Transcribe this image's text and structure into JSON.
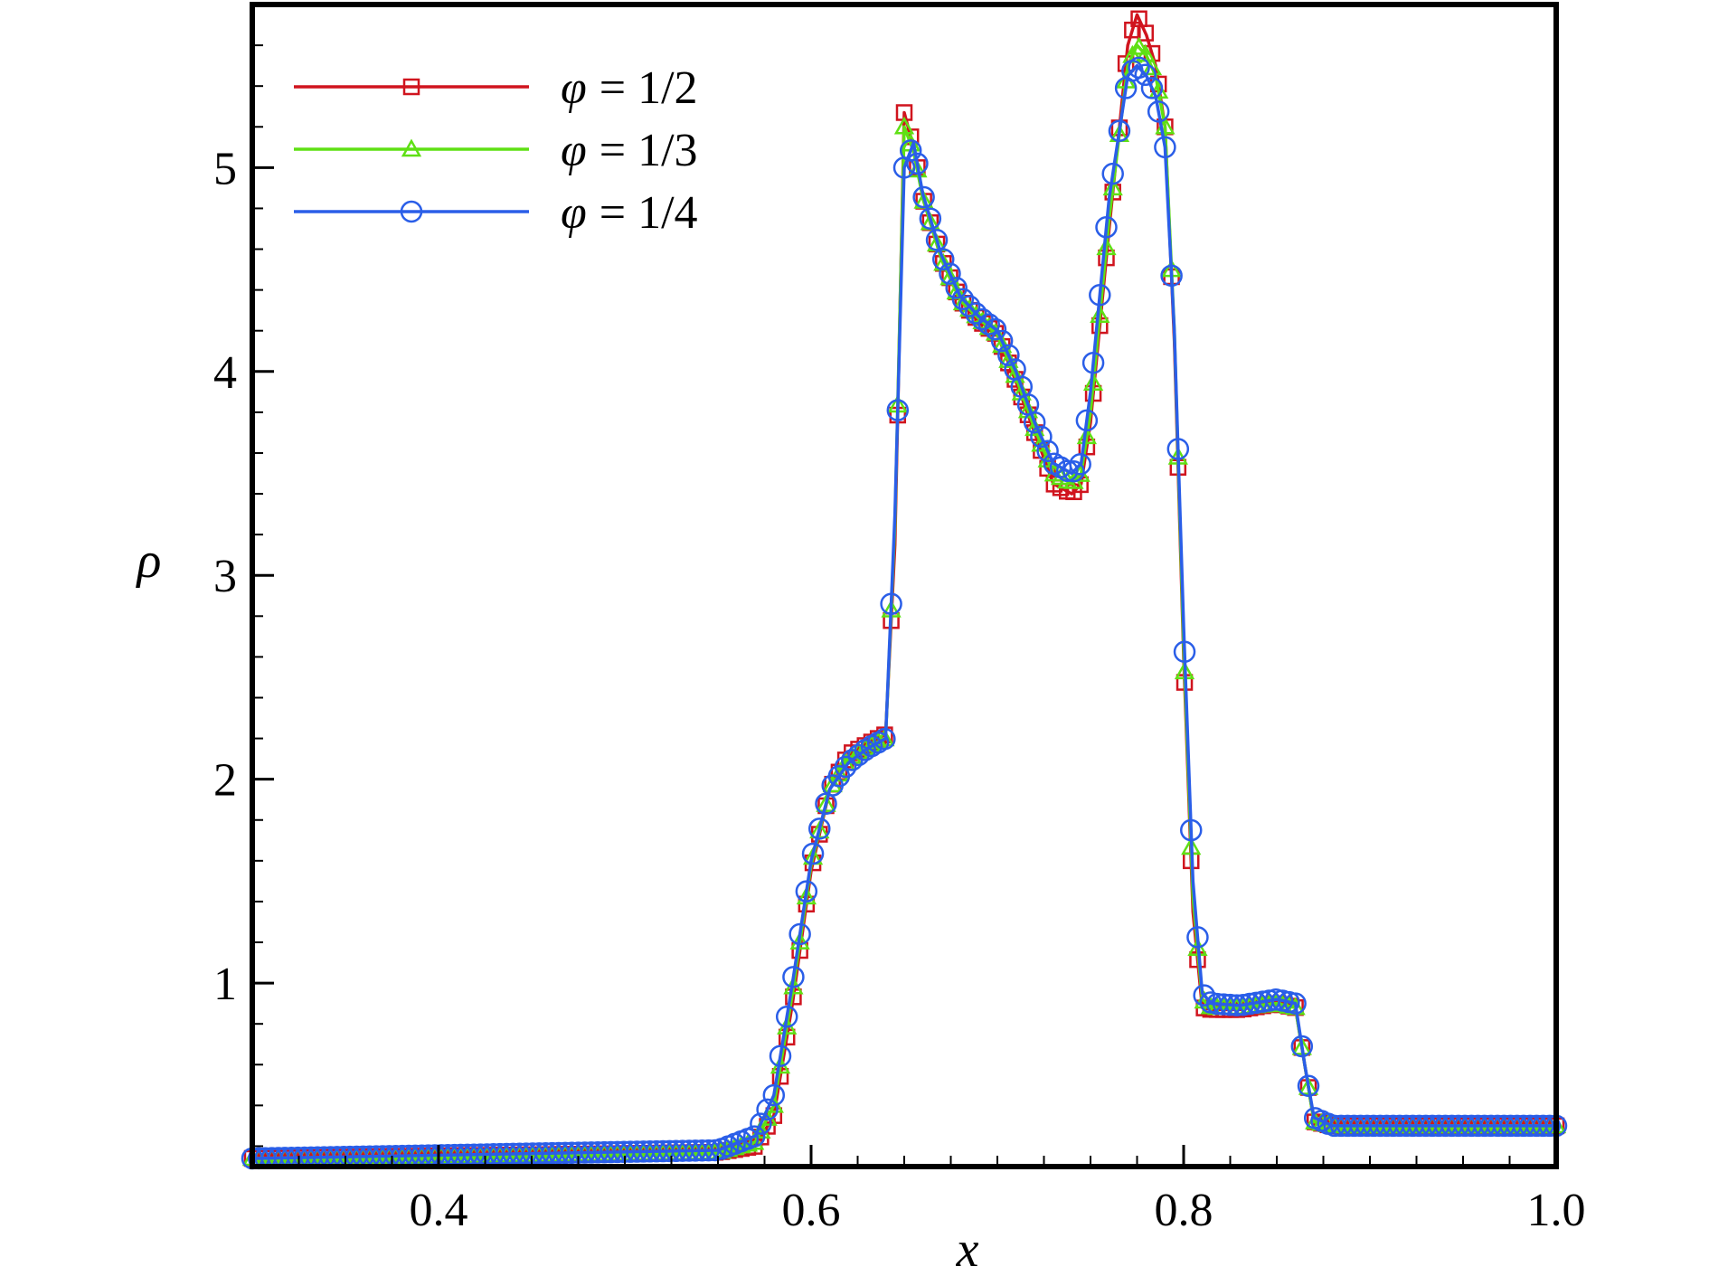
{
  "chart_data": {
    "type": "line",
    "title": "",
    "xlabel": "x",
    "ylabel": "ρ",
    "xlim": [
      0.3,
      1.0
    ],
    "ylim": [
      0.1,
      5.8
    ],
    "xticks": [
      0.4,
      0.6,
      0.8,
      1.0
    ],
    "xtick_labels": [
      "0.4",
      "0.6",
      "0.8",
      "1.0"
    ],
    "yticks": [
      1,
      2,
      3,
      4,
      5
    ],
    "ytick_labels": [
      "1",
      "2",
      "3",
      "4",
      "5"
    ],
    "grid": false,
    "legend_position": "top-left",
    "series": [
      {
        "name": "φ = 1/2",
        "label_symbol": "φ",
        "label_value": "= 1/2",
        "color": "#d0141e",
        "marker": "square",
        "x": [
          0.3,
          0.55,
          0.57,
          0.58,
          0.59,
          0.6,
          0.61,
          0.62,
          0.63,
          0.64,
          0.645,
          0.65,
          0.655,
          0.66,
          0.67,
          0.68,
          0.69,
          0.7,
          0.71,
          0.72,
          0.73,
          0.74,
          0.745,
          0.75,
          0.76,
          0.77,
          0.775,
          0.78,
          0.785,
          0.79,
          0.795,
          0.8,
          0.805,
          0.81,
          0.815,
          0.83,
          0.85,
          0.86,
          0.865,
          0.87,
          0.88,
          1.0
        ],
        "y": [
          0.14,
          0.17,
          0.2,
          0.35,
          0.9,
          1.55,
          1.95,
          2.12,
          2.17,
          2.22,
          3.15,
          5.27,
          5.1,
          4.85,
          4.55,
          4.35,
          4.25,
          4.18,
          3.95,
          3.7,
          3.45,
          3.4,
          3.45,
          3.75,
          4.7,
          5.6,
          5.75,
          5.65,
          5.5,
          5.2,
          4.15,
          2.6,
          1.35,
          0.88,
          0.87,
          0.87,
          0.9,
          0.88,
          0.6,
          0.32,
          0.3,
          0.3
        ]
      },
      {
        "name": "φ = 1/3",
        "label_symbol": "φ",
        "label_value": "= 1/3",
        "color": "#5fe014",
        "marker": "triangle",
        "x": [
          0.3,
          0.55,
          0.57,
          0.58,
          0.59,
          0.6,
          0.61,
          0.62,
          0.63,
          0.64,
          0.645,
          0.65,
          0.655,
          0.66,
          0.67,
          0.68,
          0.69,
          0.7,
          0.71,
          0.72,
          0.73,
          0.74,
          0.745,
          0.75,
          0.76,
          0.77,
          0.775,
          0.78,
          0.785,
          0.79,
          0.795,
          0.8,
          0.805,
          0.81,
          0.815,
          0.83,
          0.85,
          0.86,
          0.865,
          0.87,
          0.88,
          1.0
        ],
        "y": [
          0.14,
          0.17,
          0.22,
          0.4,
          0.95,
          1.58,
          1.95,
          2.1,
          2.16,
          2.2,
          3.25,
          5.2,
          5.08,
          4.85,
          4.55,
          4.35,
          4.26,
          4.18,
          3.97,
          3.72,
          3.5,
          3.45,
          3.5,
          3.8,
          4.75,
          5.5,
          5.6,
          5.55,
          5.45,
          5.2,
          4.2,
          2.65,
          1.42,
          0.92,
          0.88,
          0.88,
          0.9,
          0.88,
          0.6,
          0.32,
          0.3,
          0.3
        ]
      },
      {
        "name": "φ = 1/4",
        "label_symbol": "φ",
        "label_value": "= 1/4",
        "color": "#2a5ee8",
        "marker": "circle",
        "x": [
          0.3,
          0.55,
          0.57,
          0.58,
          0.59,
          0.6,
          0.61,
          0.62,
          0.63,
          0.64,
          0.645,
          0.65,
          0.655,
          0.66,
          0.67,
          0.68,
          0.69,
          0.7,
          0.71,
          0.72,
          0.73,
          0.74,
          0.745,
          0.75,
          0.76,
          0.77,
          0.775,
          0.78,
          0.785,
          0.79,
          0.795,
          0.8,
          0.805,
          0.81,
          0.815,
          0.83,
          0.85,
          0.86,
          0.865,
          0.87,
          0.88,
          1.0
        ],
        "y": [
          0.14,
          0.18,
          0.25,
          0.45,
          1.0,
          1.6,
          1.95,
          2.08,
          2.15,
          2.2,
          3.3,
          5.0,
          5.12,
          4.87,
          4.57,
          4.37,
          4.27,
          4.2,
          4.0,
          3.75,
          3.55,
          3.5,
          3.55,
          3.9,
          4.85,
          5.45,
          5.5,
          5.45,
          5.35,
          5.1,
          4.2,
          2.75,
          1.5,
          0.95,
          0.9,
          0.89,
          0.92,
          0.9,
          0.6,
          0.34,
          0.3,
          0.3
        ]
      }
    ]
  }
}
